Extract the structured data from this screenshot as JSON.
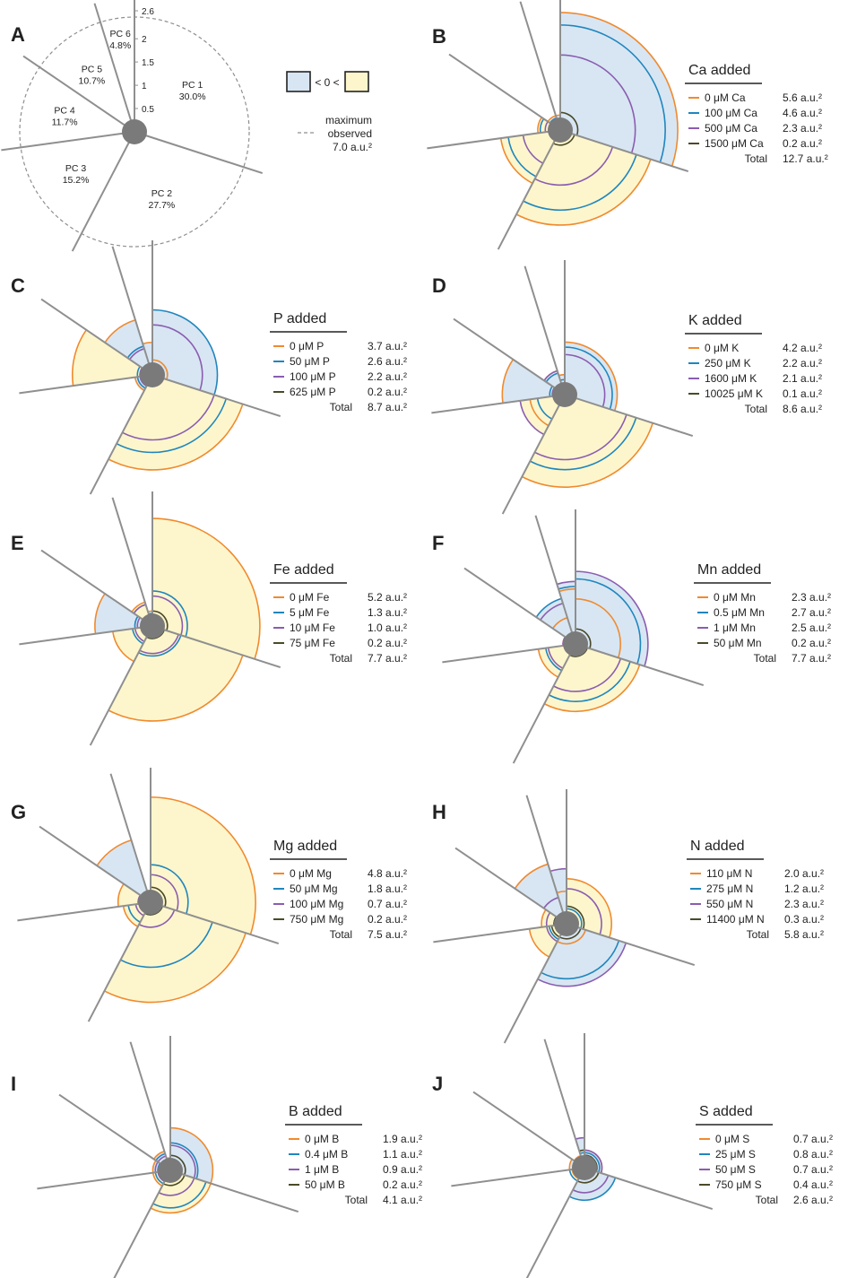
{
  "colors": {
    "negative_fill": "#d8e6f3",
    "positive_fill": "#fdf6cc",
    "axis": "#8f8f8f",
    "hub": "#7a7a7a",
    "dashed": "#8f8f8f",
    "series": [
      "#f08a2e",
      "#1f86be",
      "#8a5db0",
      "#4a4a2a"
    ]
  },
  "key": {
    "text": "< 0 <",
    "max_line1": "maximum",
    "max_line2": "observed",
    "max_value": "7.0 a.u.²"
  },
  "chart_data": [
    {
      "panel": "A",
      "type": "pie",
      "slices": [
        {
          "name": "PC 1",
          "pct": "30.0%",
          "value": 30.0
        },
        {
          "name": "PC 2",
          "pct": "27.7%",
          "value": 27.7
        },
        {
          "name": "PC 3",
          "pct": "15.2%",
          "value": 15.2
        },
        {
          "name": "PC 4",
          "pct": "11.7%",
          "value": 11.7
        },
        {
          "name": "PC 5",
          "pct": "10.7%",
          "value": 10.7
        },
        {
          "name": "PC 6",
          "pct": "4.8%",
          "value": 4.8
        }
      ],
      "radial_ticks": [
        "0",
        "0.5",
        "1",
        "1.5",
        "2",
        "2.6"
      ],
      "radial_tick_values": [
        0,
        0.5,
        1,
        1.5,
        2,
        2.6
      ],
      "max_value": 7.0
    },
    {
      "panel": "B",
      "title": "Ca added",
      "type": "polar-area",
      "series": [
        {
          "name": "0 μM Ca",
          "value": "5.6 a.u.²",
          "radii": [
            2.35,
            1.9,
            1.2,
            0.45,
            0.3,
            0.3
          ],
          "signs": [
            -1,
            1,
            1,
            1,
            -1,
            -1
          ]
        },
        {
          "name": "100 μM Ca",
          "value": "4.6 a.u.²",
          "radii": [
            2.1,
            1.6,
            1.05,
            0.4,
            0.25,
            0.2
          ],
          "signs": [
            -1,
            1,
            1,
            1,
            -1,
            -1
          ]
        },
        {
          "name": "500 μM Ca",
          "value": "2.3 a.u.²",
          "radii": [
            1.5,
            1.1,
            0.75,
            0.3,
            0.2,
            0.2
          ],
          "signs": [
            -1,
            1,
            1,
            1,
            -1,
            -1
          ]
        },
        {
          "name": "1500 μM Ca",
          "value": "0.2 a.u.²",
          "radii": [
            0.35,
            0.3,
            0.2,
            0.15,
            0.12,
            0.1
          ],
          "signs": [
            -1,
            1,
            1,
            1,
            -1,
            -1
          ]
        }
      ],
      "total": "12.7 a.u.²"
    },
    {
      "panel": "C",
      "title": "P added",
      "type": "polar-area",
      "series": [
        {
          "name": "0 μM P",
          "value": "3.7 a.u.²",
          "radii": [
            0.3,
            1.9,
            0.35,
            1.6,
            1.15,
            0.65
          ],
          "signs": [
            -1,
            1,
            -1,
            1,
            -1,
            -1
          ]
        },
        {
          "name": "50 μM P",
          "value": "2.6 a.u.²",
          "radii": [
            1.3,
            1.55,
            0.3,
            0.3,
            0.6,
            0.2
          ],
          "signs": [
            -1,
            1,
            -1,
            1,
            -1,
            -1
          ]
        },
        {
          "name": "100 μM P",
          "value": "2.2 a.u.²",
          "radii": [
            1.0,
            1.3,
            0.25,
            0.25,
            0.55,
            0.2
          ],
          "signs": [
            -1,
            1,
            -1,
            1,
            -1,
            -1
          ]
        },
        {
          "name": "625 μM P",
          "value": "0.2 a.u.²",
          "radii": [
            0.2,
            0.2,
            0.15,
            0.1,
            0.1,
            0.1
          ],
          "signs": [
            -1,
            1,
            -1,
            1,
            -1,
            -1
          ]
        }
      ],
      "total": "8.7 a.u.²"
    },
    {
      "panel": "D",
      "title": "K added",
      "type": "polar-area",
      "series": [
        {
          "name": "0 μM K",
          "value": "4.2 a.u.²",
          "radii": [
            1.05,
            1.85,
            0.7,
            1.25,
            0.5,
            0.4
          ],
          "signs": [
            -1,
            1,
            1,
            -1,
            -1,
            -1
          ]
        },
        {
          "name": "250 μM K",
          "value": "2.2 a.u.²",
          "radii": [
            0.95,
            1.5,
            0.55,
            0.3,
            0.45,
            0.3
          ],
          "signs": [
            -1,
            1,
            1,
            -1,
            -1,
            -1
          ]
        },
        {
          "name": "1600 μM K",
          "value": "2.1 a.u.²",
          "radii": [
            0.8,
            1.3,
            0.9,
            0.25,
            0.5,
            0.2
          ],
          "signs": [
            -1,
            1,
            1,
            -1,
            -1,
            -1
          ]
        },
        {
          "name": "10025 μM K",
          "value": "0.1 a.u.²",
          "radii": [
            0.2,
            0.2,
            0.2,
            0.15,
            0.1,
            0.1
          ],
          "signs": [
            -1,
            1,
            1,
            -1,
            -1,
            -1
          ]
        }
      ],
      "total": "8.6 a.u.²"
    },
    {
      "panel": "E",
      "title": "Fe added",
      "type": "polar-area",
      "series": [
        {
          "name": "0 μM Fe",
          "value": "5.2 a.u.²",
          "radii": [
            2.15,
            1.9,
            0.8,
            1.15,
            0.5,
            0.3
          ],
          "signs": [
            1,
            1,
            1,
            -1,
            1,
            -1
          ]
        },
        {
          "name": "5 μM Fe",
          "value": "1.3 a.u.²",
          "radii": [
            0.7,
            0.6,
            0.4,
            0.35,
            0.45,
            0.25
          ],
          "signs": [
            1,
            1,
            1,
            -1,
            1,
            -1
          ]
        },
        {
          "name": "10 μM Fe",
          "value": "1.0 a.u.²",
          "radii": [
            0.6,
            0.55,
            0.35,
            0.3,
            0.45,
            0.2
          ],
          "signs": [
            1,
            1,
            1,
            -1,
            1,
            -1
          ]
        },
        {
          "name": "75 μM Fe",
          "value": "0.2 a.u.²",
          "radii": [
            0.3,
            0.25,
            0.2,
            0.2,
            0.2,
            0.15
          ],
          "signs": [
            1,
            1,
            1,
            -1,
            1,
            -1
          ]
        }
      ],
      "total": "7.7 a.u.²"
    },
    {
      "panel": "F",
      "title": "Mn added",
      "type": "polar-area",
      "series": [
        {
          "name": "0 μM Mn",
          "value": "2.3 a.u.²",
          "radii": [
            0.9,
            1.35,
            0.75,
            0.25,
            0.55,
            1.1
          ],
          "signs": [
            -1,
            1,
            1,
            1,
            -1,
            -1
          ]
        },
        {
          "name": "0.5 μM Mn",
          "value": "2.7 a.u.²",
          "radii": [
            1.3,
            1.15,
            0.6,
            0.2,
            0.95,
            1.15
          ],
          "signs": [
            -1,
            1,
            1,
            1,
            -1,
            -1
          ]
        },
        {
          "name": "1 μM Mn",
          "value": "2.5 a.u.²",
          "radii": [
            1.45,
            0.95,
            0.55,
            0.25,
            0.85,
            1.25
          ],
          "signs": [
            -1,
            1,
            1,
            1,
            -1,
            -1
          ]
        },
        {
          "name": "50 μM Mn",
          "value": "0.2 a.u.²",
          "radii": [
            0.3,
            0.25,
            0.2,
            0.2,
            0.2,
            0.2
          ],
          "signs": [
            -1,
            1,
            1,
            1,
            -1,
            -1
          ]
        }
      ],
      "total": "7.7 a.u.²"
    },
    {
      "panel": "G",
      "title": "Mg added",
      "type": "polar-area",
      "series": [
        {
          "name": "0 μM Mg",
          "value": "4.8 a.u.²",
          "radii": [
            2.1,
            2.0,
            0.55,
            0.65,
            1.3,
            0.2
          ],
          "signs": [
            1,
            1,
            1,
            1,
            -1,
            -1
          ]
        },
        {
          "name": "50 μM Mg",
          "value": "1.8 a.u.²",
          "radii": [
            0.75,
            1.3,
            0.45,
            0.2,
            0.2,
            0.2
          ],
          "signs": [
            1,
            1,
            1,
            1,
            -1,
            -1
          ]
        },
        {
          "name": "100 μM Mg",
          "value": "0.7 a.u.²",
          "radii": [
            0.55,
            0.5,
            0.3,
            0.25,
            0.2,
            0.15
          ],
          "signs": [
            1,
            1,
            1,
            1,
            -1,
            -1
          ]
        },
        {
          "name": "750 μM Mg",
          "value": "0.2 a.u.²",
          "radii": [
            0.3,
            0.25,
            0.2,
            0.2,
            0.15,
            0.1
          ],
          "signs": [
            1,
            1,
            1,
            1,
            -1,
            -1
          ]
        }
      ],
      "total": "7.5 a.u.²"
    },
    {
      "panel": "H",
      "title": "N added",
      "type": "polar-area",
      "series": [
        {
          "name": "110 μM N",
          "value": "2.0 a.u.²",
          "radii": [
            0.9,
            0.4,
            0.75,
            0.5,
            1.25,
            0.65
          ],
          "signs": [
            1,
            -1,
            1,
            1,
            -1,
            -1
          ]
        },
        {
          "name": "275 μM N",
          "value": "1.2 a.u.²",
          "radii": [
            0.3,
            1.1,
            0.35,
            0.25,
            0.2,
            0.15
          ],
          "signs": [
            1,
            -1,
            1,
            1,
            -1,
            -1
          ]
        },
        {
          "name": "550 μM N",
          "value": "2.3 a.u.²",
          "radii": [
            0.7,
            1.25,
            0.4,
            0.4,
            0.55,
            1.1
          ],
          "signs": [
            1,
            -1,
            1,
            1,
            -1,
            -1
          ]
        },
        {
          "name": "11400 μM N",
          "value": "0.3 a.u.²",
          "radii": [
            0.35,
            0.3,
            0.3,
            0.25,
            0.2,
            0.2
          ],
          "signs": [
            1,
            -1,
            1,
            1,
            -1,
            -1
          ]
        }
      ],
      "total": "5.8 a.u.²"
    },
    {
      "panel": "I",
      "title": "B added",
      "type": "polar-area",
      "series": [
        {
          "name": "0 μM B",
          "value": "1.9 a.u.²",
          "radii": [
            0.85,
            0.85,
            0.35,
            0.35,
            0.4,
            0.25
          ],
          "signs": [
            -1,
            1,
            1,
            -1,
            -1,
            -1
          ]
        },
        {
          "name": "0.4 μM B",
          "value": "1.1 a.u.²",
          "radii": [
            0.55,
            0.75,
            0.3,
            0.25,
            0.35,
            0.2
          ],
          "signs": [
            -1,
            1,
            1,
            -1,
            -1,
            -1
          ]
        },
        {
          "name": "1 μM B",
          "value": "0.9 a.u.²",
          "radii": [
            0.5,
            0.5,
            0.25,
            0.3,
            0.3,
            0.2
          ],
          "signs": [
            -1,
            1,
            1,
            -1,
            -1,
            -1
          ]
        },
        {
          "name": "50 μM B",
          "value": "0.2 a.u.²",
          "radii": [
            0.3,
            0.3,
            0.2,
            0.2,
            0.2,
            0.15
          ],
          "signs": [
            -1,
            1,
            1,
            -1,
            -1,
            -1
          ]
        }
      ],
      "total": "4.1 a.u.²"
    },
    {
      "panel": "J",
      "title": "S added",
      "type": "polar-area",
      "series": [
        {
          "name": "0 μM S",
          "value": "0.7 a.u.²",
          "radii": [
            0.35,
            0.3,
            0.25,
            0.3,
            0.25,
            0.35
          ],
          "signs": [
            -1,
            -1,
            1,
            -1,
            -1,
            -1
          ]
        },
        {
          "name": "25 μM S",
          "value": "0.8 a.u.²",
          "radii": [
            0.3,
            0.65,
            0.3,
            0.2,
            0.2,
            0.3
          ],
          "signs": [
            -1,
            -1,
            1,
            -1,
            -1,
            -1
          ]
        },
        {
          "name": "50 μM S",
          "value": "0.7 a.u.²",
          "radii": [
            0.35,
            0.5,
            0.2,
            0.2,
            0.2,
            0.6
          ],
          "signs": [
            -1,
            -1,
            1,
            -1,
            -1,
            -1
          ]
        },
        {
          "name": "750 μM S",
          "value": "0.4 a.u.²",
          "radii": [
            0.25,
            0.3,
            0.2,
            0.15,
            0.15,
            0.35
          ],
          "signs": [
            -1,
            -1,
            1,
            -1,
            -1,
            -1
          ]
        }
      ],
      "total": "2.6 a.u.²"
    }
  ],
  "total_label": "Total"
}
